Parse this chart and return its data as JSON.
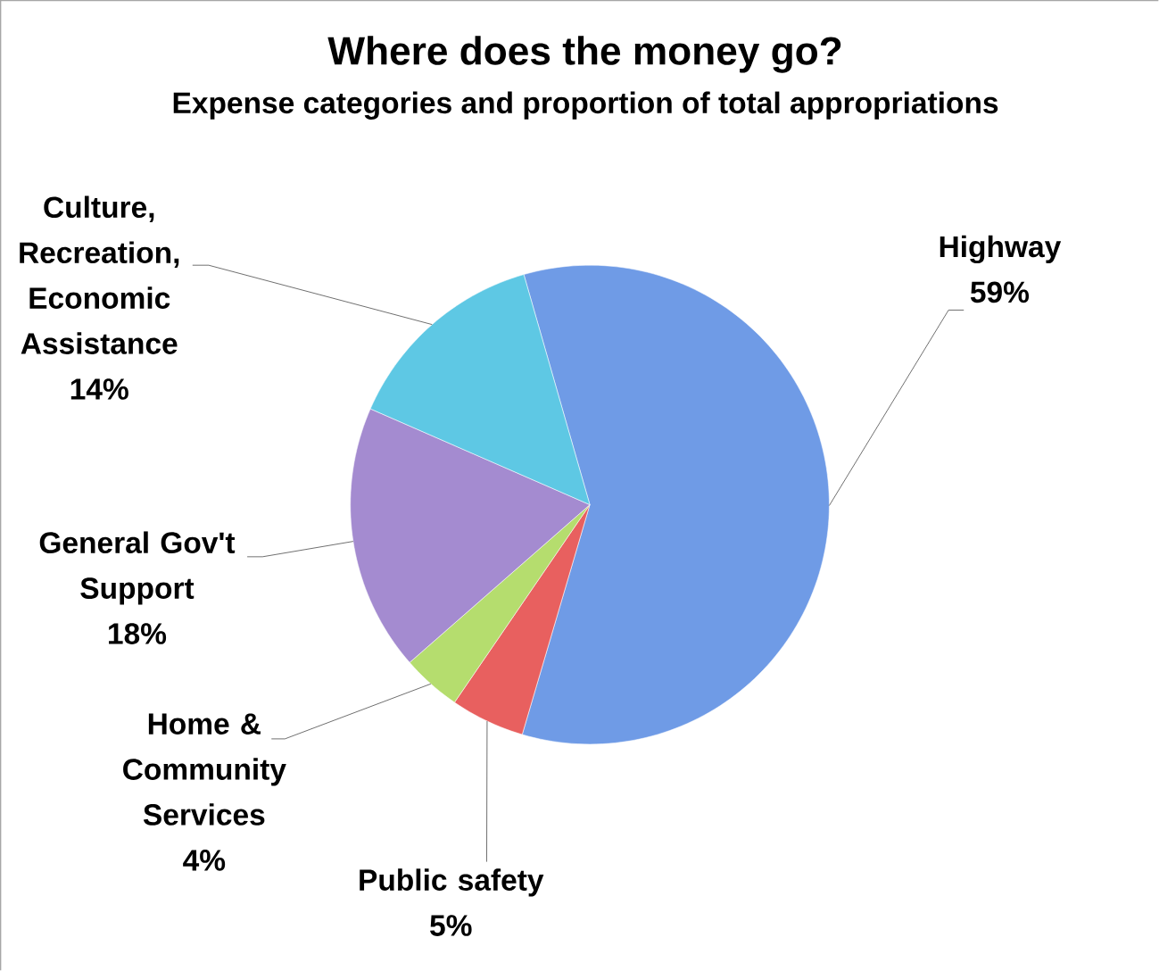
{
  "chart_data": {
    "type": "pie",
    "title": "Where does the money go?",
    "subtitle": "Expense categories and proportion of total appropriations",
    "categories": [
      "Highway",
      "Public safety",
      "Home & Community Services",
      "General Gov't Support",
      "Culture, Recreation, Economic Assistance"
    ],
    "values": [
      59,
      5,
      4,
      18,
      14
    ],
    "value_labels": [
      "59%",
      "5%",
      "4%",
      "18%",
      "14%"
    ],
    "colors": [
      "#6f9be6",
      "#e8605f",
      "#b5dd6e",
      "#a48bd0",
      "#5ec8e4"
    ]
  }
}
